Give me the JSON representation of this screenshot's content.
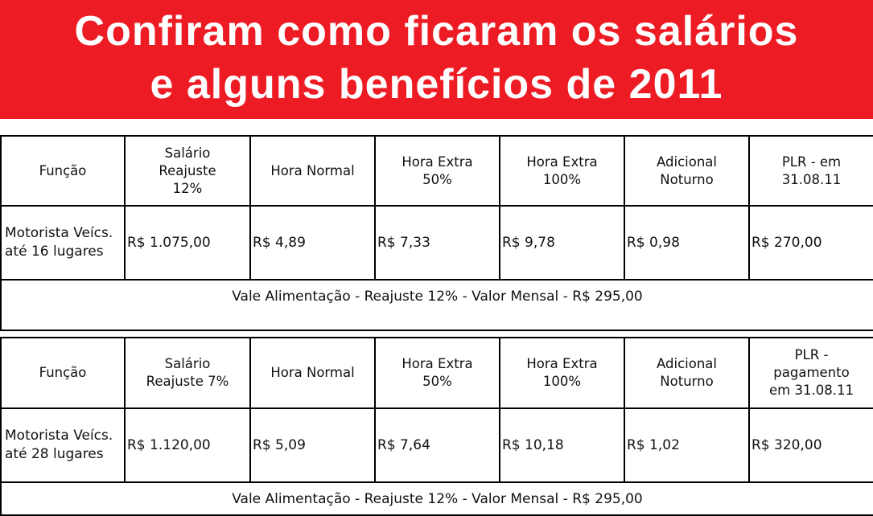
{
  "banner": {
    "line1": "Confiram como ficaram os salários",
    "line2": "e alguns benefícios de 2011",
    "bg_color": "#ed1c24",
    "text_color": "#ffffff"
  },
  "tables": [
    {
      "headers": {
        "funcao": "Função",
        "salario": "Salário Reajuste 12%",
        "hora_normal": "Hora Normal",
        "hora_extra_50": "Hora Extra 50%",
        "hora_extra_100": "Hora Extra 100%",
        "adicional_noturno": "Adicional Noturno",
        "plr": "PLR - em 31.08.11"
      },
      "row": {
        "funcao": "Motorista Veícs. até 16 lugares",
        "salario": "R$ 1.075,00",
        "hora_normal": "R$ 4,89",
        "hora_extra_50": "R$ 7,33",
        "hora_extra_100": "R$ 9,78",
        "adicional_noturno": "R$ 0,98",
        "plr": "R$ 270,00"
      },
      "vale": "Vale Alimentação - Reajuste 12% - Valor Mensal - R$ 295,00"
    },
    {
      "headers": {
        "funcao": "Função",
        "salario": "Salário Reajuste 7%",
        "hora_normal": "Hora Normal",
        "hora_extra_50": "Hora Extra 50%",
        "hora_extra_100": "Hora Extra 100%",
        "adicional_noturno": "Adicional Noturno",
        "plr": "PLR - pagamento em 31.08.11"
      },
      "row": {
        "funcao": "Motorista Veícs. até 28 lugares",
        "salario": "R$ 1.120,00",
        "hora_normal": "R$ 5,09",
        "hora_extra_50": "R$ 7,64",
        "hora_extra_100": "R$ 10,18",
        "adicional_noturno": "R$ 1,02",
        "plr": "R$ 320,00"
      },
      "vale": "Vale Alimentação - Reajuste 12% - Valor Mensal - R$ 295,00"
    }
  ]
}
